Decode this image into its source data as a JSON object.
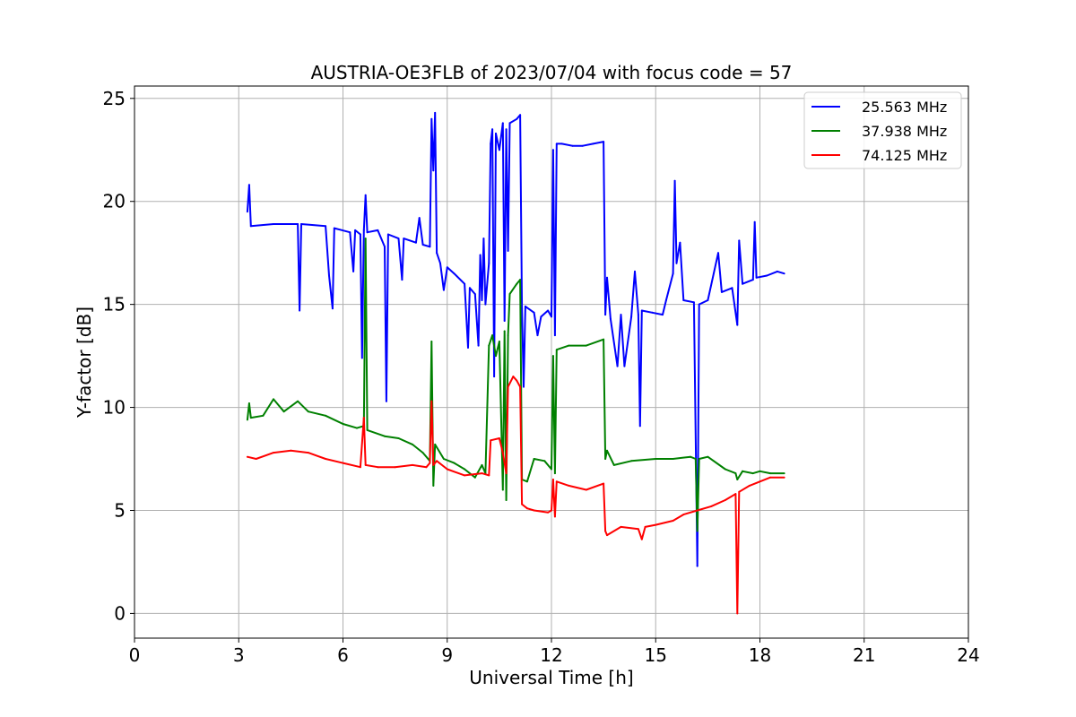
{
  "chart_data": {
    "type": "line",
    "title": "AUSTRIA-OE3FLB of 2023/07/04 with focus code = 57",
    "xlabel": "Universal Time [h]",
    "ylabel": "Y-factor [dB]",
    "xlim": [
      0,
      24
    ],
    "ylim": [
      -1.2,
      25.6
    ],
    "xticks": [
      0,
      3,
      6,
      9,
      12,
      15,
      18,
      21,
      24
    ],
    "yticks": [
      0,
      5,
      10,
      15,
      20,
      25
    ],
    "grid": true,
    "legend_position": "top-right",
    "series": [
      {
        "name": "25.563 MHz",
        "color": "#0000ff",
        "points": [
          [
            3.25,
            19.5
          ],
          [
            3.3,
            20.8
          ],
          [
            3.35,
            18.8
          ],
          [
            4.0,
            18.9
          ],
          [
            4.7,
            18.9
          ],
          [
            4.75,
            14.7
          ],
          [
            4.8,
            18.9
          ],
          [
            5.5,
            18.8
          ],
          [
            5.6,
            16.4
          ],
          [
            5.7,
            14.8
          ],
          [
            5.75,
            18.7
          ],
          [
            6.2,
            18.5
          ],
          [
            6.3,
            16.6
          ],
          [
            6.35,
            18.6
          ],
          [
            6.5,
            18.4
          ],
          [
            6.55,
            12.4
          ],
          [
            6.6,
            18.6
          ],
          [
            6.65,
            20.3
          ],
          [
            6.7,
            18.5
          ],
          [
            7.0,
            18.6
          ],
          [
            7.2,
            17.8
          ],
          [
            7.25,
            10.3
          ],
          [
            7.3,
            18.4
          ],
          [
            7.6,
            18.2
          ],
          [
            7.7,
            16.2
          ],
          [
            7.75,
            18.2
          ],
          [
            8.1,
            18.0
          ],
          [
            8.2,
            19.2
          ],
          [
            8.3,
            17.9
          ],
          [
            8.5,
            17.8
          ],
          [
            8.55,
            24.0
          ],
          [
            8.6,
            21.5
          ],
          [
            8.65,
            24.3
          ],
          [
            8.7,
            17.5
          ],
          [
            8.8,
            17.0
          ],
          [
            8.9,
            15.7
          ],
          [
            9.0,
            16.8
          ],
          [
            9.2,
            16.5
          ],
          [
            9.5,
            16.0
          ],
          [
            9.6,
            12.9
          ],
          [
            9.65,
            15.8
          ],
          [
            9.8,
            15.5
          ],
          [
            9.9,
            13.0
          ],
          [
            9.95,
            17.4
          ],
          [
            10.0,
            15.2
          ],
          [
            10.05,
            18.2
          ],
          [
            10.1,
            15.0
          ],
          [
            10.2,
            17.0
          ],
          [
            10.25,
            22.8
          ],
          [
            10.3,
            23.5
          ],
          [
            10.35,
            11.5
          ],
          [
            10.4,
            23.3
          ],
          [
            10.5,
            22.5
          ],
          [
            10.6,
            23.8
          ],
          [
            10.65,
            14.2
          ],
          [
            10.7,
            23.5
          ],
          [
            10.75,
            17.6
          ],
          [
            10.8,
            23.8
          ],
          [
            11.0,
            24.0
          ],
          [
            11.1,
            24.2
          ],
          [
            11.15,
            14.8
          ],
          [
            11.2,
            11.0
          ],
          [
            11.25,
            14.9
          ],
          [
            11.5,
            14.6
          ],
          [
            11.6,
            13.5
          ],
          [
            11.7,
            14.4
          ],
          [
            11.9,
            14.7
          ],
          [
            12.0,
            14.4
          ],
          [
            12.05,
            22.5
          ],
          [
            12.1,
            13.5
          ],
          [
            12.15,
            22.8
          ],
          [
            12.3,
            22.8
          ],
          [
            12.6,
            22.7
          ],
          [
            12.9,
            22.7
          ],
          [
            13.2,
            22.8
          ],
          [
            13.5,
            22.9
          ],
          [
            13.55,
            14.5
          ],
          [
            13.6,
            16.3
          ],
          [
            13.7,
            14.3
          ],
          [
            13.9,
            12.0
          ],
          [
            14.0,
            14.5
          ],
          [
            14.1,
            12.0
          ],
          [
            14.3,
            14.4
          ],
          [
            14.4,
            16.6
          ],
          [
            14.5,
            14.5
          ],
          [
            14.55,
            9.1
          ],
          [
            14.6,
            14.7
          ],
          [
            14.9,
            14.6
          ],
          [
            15.2,
            14.5
          ],
          [
            15.3,
            15.2
          ],
          [
            15.5,
            16.5
          ],
          [
            15.55,
            21.0
          ],
          [
            15.6,
            17.0
          ],
          [
            15.7,
            18.0
          ],
          [
            15.8,
            15.2
          ],
          [
            16.1,
            15.1
          ],
          [
            16.2,
            2.3
          ],
          [
            16.25,
            15.0
          ],
          [
            16.5,
            15.2
          ],
          [
            16.8,
            17.5
          ],
          [
            16.9,
            15.6
          ],
          [
            17.2,
            15.8
          ],
          [
            17.35,
            14.0
          ],
          [
            17.4,
            18.1
          ],
          [
            17.5,
            16.0
          ],
          [
            17.8,
            16.2
          ],
          [
            17.85,
            19.0
          ],
          [
            17.9,
            16.3
          ],
          [
            18.2,
            16.4
          ],
          [
            18.5,
            16.6
          ],
          [
            18.7,
            16.5
          ]
        ]
      },
      {
        "name": "37.938 MHz",
        "color": "#008000",
        "points": [
          [
            3.25,
            9.4
          ],
          [
            3.3,
            10.2
          ],
          [
            3.35,
            9.5
          ],
          [
            3.7,
            9.6
          ],
          [
            4.0,
            10.4
          ],
          [
            4.3,
            9.8
          ],
          [
            4.7,
            10.3
          ],
          [
            5.0,
            9.8
          ],
          [
            5.5,
            9.6
          ],
          [
            6.0,
            9.2
          ],
          [
            6.4,
            9.0
          ],
          [
            6.6,
            9.1
          ],
          [
            6.65,
            18.2
          ],
          [
            6.7,
            8.9
          ],
          [
            7.2,
            8.6
          ],
          [
            7.6,
            8.5
          ],
          [
            8.0,
            8.2
          ],
          [
            8.3,
            7.8
          ],
          [
            8.5,
            7.4
          ],
          [
            8.55,
            13.2
          ],
          [
            8.6,
            6.2
          ],
          [
            8.65,
            8.2
          ],
          [
            8.9,
            7.5
          ],
          [
            9.2,
            7.3
          ],
          [
            9.5,
            7.0
          ],
          [
            9.8,
            6.6
          ],
          [
            10.0,
            7.2
          ],
          [
            10.1,
            6.8
          ],
          [
            10.2,
            13.0
          ],
          [
            10.3,
            13.5
          ],
          [
            10.4,
            12.5
          ],
          [
            10.5,
            13.2
          ],
          [
            10.6,
            6.0
          ],
          [
            10.65,
            13.7
          ],
          [
            10.7,
            5.5
          ],
          [
            10.75,
            13.5
          ],
          [
            10.8,
            15.5
          ],
          [
            11.0,
            16.0
          ],
          [
            11.1,
            16.2
          ],
          [
            11.15,
            6.5
          ],
          [
            11.3,
            6.4
          ],
          [
            11.5,
            7.5
          ],
          [
            11.8,
            7.4
          ],
          [
            12.0,
            7.0
          ],
          [
            12.05,
            12.5
          ],
          [
            12.1,
            6.8
          ],
          [
            12.15,
            12.8
          ],
          [
            12.5,
            13.0
          ],
          [
            13.0,
            13.0
          ],
          [
            13.5,
            13.3
          ],
          [
            13.55,
            7.5
          ],
          [
            13.6,
            7.9
          ],
          [
            13.8,
            7.2
          ],
          [
            14.3,
            7.4
          ],
          [
            15.0,
            7.5
          ],
          [
            15.5,
            7.5
          ],
          [
            16.0,
            7.6
          ],
          [
            16.15,
            7.5
          ],
          [
            16.2,
            4.0
          ],
          [
            16.25,
            7.5
          ],
          [
            16.5,
            7.6
          ],
          [
            17.0,
            7.0
          ],
          [
            17.3,
            6.8
          ],
          [
            17.35,
            6.5
          ],
          [
            17.5,
            6.9
          ],
          [
            17.8,
            6.8
          ],
          [
            18.0,
            6.9
          ],
          [
            18.3,
            6.8
          ],
          [
            18.7,
            6.8
          ]
        ]
      },
      {
        "name": "74.125 MHz",
        "color": "#ff0000",
        "points": [
          [
            3.25,
            7.6
          ],
          [
            3.5,
            7.5
          ],
          [
            4.0,
            7.8
          ],
          [
            4.5,
            7.9
          ],
          [
            5.0,
            7.8
          ],
          [
            5.5,
            7.5
          ],
          [
            6.0,
            7.3
          ],
          [
            6.5,
            7.1
          ],
          [
            6.6,
            9.5
          ],
          [
            6.65,
            7.2
          ],
          [
            7.0,
            7.1
          ],
          [
            7.5,
            7.1
          ],
          [
            8.0,
            7.2
          ],
          [
            8.4,
            7.1
          ],
          [
            8.5,
            7.3
          ],
          [
            8.55,
            10.3
          ],
          [
            8.6,
            7.2
          ],
          [
            8.7,
            7.4
          ],
          [
            9.0,
            7.0
          ],
          [
            9.5,
            6.7
          ],
          [
            10.0,
            6.8
          ],
          [
            10.2,
            6.7
          ],
          [
            10.25,
            8.4
          ],
          [
            10.5,
            8.5
          ],
          [
            10.6,
            7.8
          ],
          [
            10.7,
            6.8
          ],
          [
            10.75,
            11.0
          ],
          [
            10.9,
            11.5
          ],
          [
            11.0,
            11.3
          ],
          [
            11.1,
            11.0
          ],
          [
            11.15,
            5.3
          ],
          [
            11.3,
            5.1
          ],
          [
            11.5,
            5.0
          ],
          [
            11.9,
            4.9
          ],
          [
            12.0,
            5.0
          ],
          [
            12.05,
            6.5
          ],
          [
            12.1,
            4.7
          ],
          [
            12.15,
            6.4
          ],
          [
            12.5,
            6.2
          ],
          [
            13.0,
            6.0
          ],
          [
            13.5,
            6.3
          ],
          [
            13.55,
            4.0
          ],
          [
            13.6,
            3.8
          ],
          [
            14.0,
            4.2
          ],
          [
            14.5,
            4.1
          ],
          [
            14.6,
            3.6
          ],
          [
            14.7,
            4.2
          ],
          [
            15.0,
            4.3
          ],
          [
            15.5,
            4.5
          ],
          [
            15.8,
            4.8
          ],
          [
            16.2,
            5.0
          ],
          [
            16.6,
            5.2
          ],
          [
            17.0,
            5.5
          ],
          [
            17.3,
            5.8
          ],
          [
            17.35,
            0.0
          ],
          [
            17.4,
            5.9
          ],
          [
            17.7,
            6.2
          ],
          [
            18.0,
            6.4
          ],
          [
            18.3,
            6.6
          ],
          [
            18.7,
            6.6
          ]
        ]
      }
    ]
  }
}
